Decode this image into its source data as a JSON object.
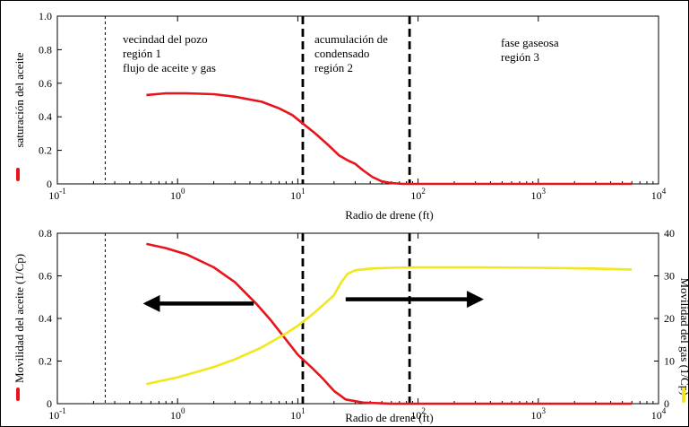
{
  "chart_data": [
    {
      "type": "line",
      "xlabel": "Radio de drene (ft)",
      "ylabel": "saturación del aceite",
      "x_scale": "log",
      "xlim": [
        0.1,
        10000
      ],
      "ylim": [
        0,
        1.0
      ],
      "x_ticks": [
        {
          "base": "10",
          "exp": "-1",
          "value": 0.1
        },
        {
          "base": "10",
          "exp": "0",
          "value": 1
        },
        {
          "base": "10",
          "exp": "1",
          "value": 10
        },
        {
          "base": "10",
          "exp": "2",
          "value": 100
        },
        {
          "base": "10",
          "exp": "3",
          "value": 1000
        },
        {
          "base": "10",
          "exp": "4",
          "value": 10000
        }
      ],
      "y_ticks": [
        {
          "label": "0",
          "value": 0
        },
        {
          "label": "0.2",
          "value": 0.2
        },
        {
          "label": "0.4",
          "value": 0.4
        },
        {
          "label": "0.6",
          "value": 0.6
        },
        {
          "label": "0.8",
          "value": 0.8
        },
        {
          "label": "1.0",
          "value": 1.0
        }
      ],
      "series": [
        {
          "color": "#e8141c",
          "x": [
            0.55,
            0.8,
            1.2,
            2,
            3,
            5,
            7,
            9,
            11,
            14,
            18,
            22,
            26,
            30,
            35,
            42,
            50,
            60,
            75,
            90,
            150,
            300,
            1000,
            3000,
            6000
          ],
          "y": [
            0.53,
            0.54,
            0.54,
            0.535,
            0.52,
            0.49,
            0.45,
            0.41,
            0.36,
            0.3,
            0.23,
            0.17,
            0.14,
            0.12,
            0.08,
            0.04,
            0.015,
            0.005,
            0.0,
            0.0,
            0.0,
            0.0,
            0.0,
            0.0,
            0.0
          ]
        }
      ],
      "vlines": [
        {
          "x": 0.25,
          "style": "thin-dashed"
        },
        {
          "x": 11,
          "style": "bold-dashed"
        },
        {
          "x": 85,
          "style": "bold-dashed"
        }
      ],
      "annotations": [
        {
          "lines": [
            "vecindad del pozo",
            "región 1",
            "flujo de aceite y gas"
          ]
        },
        {
          "lines": [
            "acumulación de",
            "condensado",
            "región 2"
          ]
        },
        {
          "lines": [
            "fase gaseosa",
            "región 3"
          ]
        }
      ]
    },
    {
      "type": "line",
      "xlabel": "Radio de drene (ft)",
      "ylabel": "Movilidad del aceite (1/Cp)",
      "y2label": "Movilidad del gas (1/Cp)",
      "x_scale": "log",
      "xlim": [
        0.1,
        10000
      ],
      "ylim": [
        0,
        0.8
      ],
      "y2lim": [
        0,
        40
      ],
      "x_ticks": [
        {
          "base": "10",
          "exp": "-1",
          "value": 0.1
        },
        {
          "base": "10",
          "exp": "0",
          "value": 1
        },
        {
          "base": "10",
          "exp": "1",
          "value": 10
        },
        {
          "base": "10",
          "exp": "2",
          "value": 100
        },
        {
          "base": "10",
          "exp": "3",
          "value": 1000
        },
        {
          "base": "10",
          "exp": "4",
          "value": 10000
        }
      ],
      "y_ticks": [
        {
          "label": "0",
          "value": 0
        },
        {
          "label": "0.2",
          "value": 0.2
        },
        {
          "label": "0.4",
          "value": 0.4
        },
        {
          "label": "0.6",
          "value": 0.6
        },
        {
          "label": "0.8",
          "value": 0.8
        }
      ],
      "y2_ticks": [
        {
          "label": "0",
          "value": 0
        },
        {
          "label": "10",
          "value": 10
        },
        {
          "label": "20",
          "value": 20
        },
        {
          "label": "30",
          "value": 30
        },
        {
          "label": "40",
          "value": 40
        }
      ],
      "series": [
        {
          "color": "#e8141c",
          "axis": "left",
          "x": [
            0.55,
            0.8,
            1.2,
            2,
            3,
            4.5,
            6,
            8,
            10,
            13,
            16,
            20,
            25,
            35,
            60,
            100,
            300,
            1000,
            3000,
            6000
          ],
          "y": [
            0.75,
            0.73,
            0.7,
            0.64,
            0.57,
            0.47,
            0.39,
            0.3,
            0.23,
            0.17,
            0.12,
            0.06,
            0.02,
            0.005,
            0.0,
            0.0,
            0.0,
            0.0,
            0.0,
            0.0
          ]
        },
        {
          "color": "#f0e81a",
          "axis": "right",
          "x": [
            0.55,
            1,
            2,
            3,
            5,
            8,
            10,
            13,
            16,
            20,
            23,
            26,
            30,
            40,
            60,
            100,
            300,
            1000,
            3000,
            6000
          ],
          "y": [
            4.6,
            6.2,
            8.6,
            10.4,
            13.2,
            16.5,
            18.3,
            20.8,
            23.0,
            25.5,
            28.5,
            30.5,
            31.3,
            31.7,
            31.9,
            32.0,
            32.0,
            31.9,
            31.7,
            31.5
          ]
        }
      ],
      "vlines": [
        {
          "x": 0.25,
          "style": "thin-dashed"
        },
        {
          "x": 11,
          "style": "bold-dashed"
        },
        {
          "x": 85,
          "style": "bold-dashed"
        }
      ],
      "arrows": [
        {
          "from": 4.3,
          "to": 0.55,
          "y": 0.47
        },
        {
          "from": 25,
          "to": 330,
          "y": 0.49
        }
      ]
    }
  ]
}
